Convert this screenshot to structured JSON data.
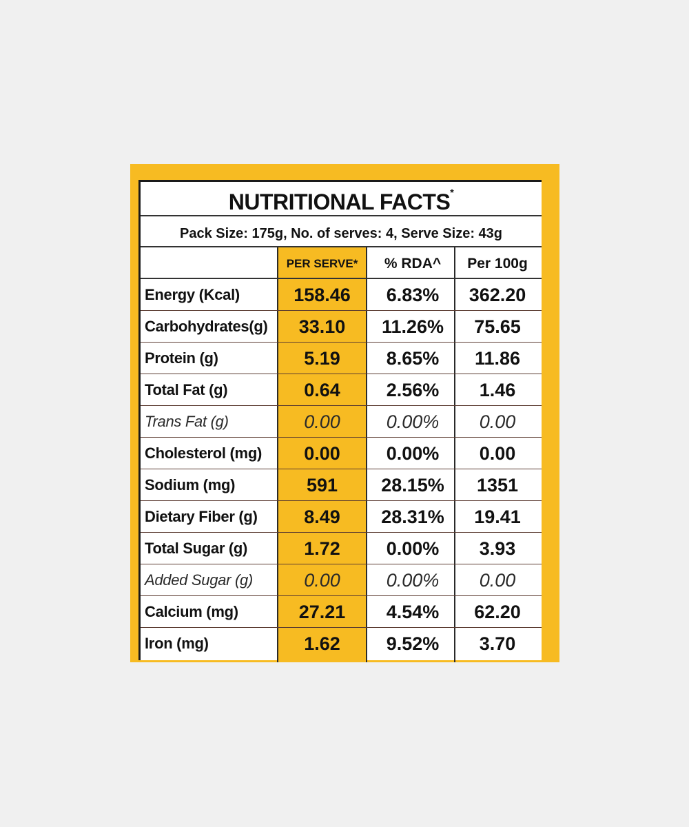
{
  "label": {
    "title": "NUTRITIONAL FACTS",
    "title_mark": "*",
    "pack_info": "Pack Size: 175g, No. of serves: 4, Serve Size: 43g",
    "columns": {
      "per_serve": "PER SERVE*",
      "rda": "% RDA^",
      "per_100g": "Per 100g"
    },
    "rows": [
      {
        "name": "Energy (Kcal)",
        "per_serve": "158.46",
        "rda": "6.83%",
        "per_100g": "362.20"
      },
      {
        "name": "Carbohydrates(g)",
        "per_serve": "33.10",
        "rda": "11.26%",
        "per_100g": "75.65"
      },
      {
        "name": "Protein (g)",
        "per_serve": "5.19",
        "rda": "8.65%",
        "per_100g": "11.86"
      },
      {
        "name": "Total Fat (g)",
        "per_serve": "0.64",
        "rda": "2.56%",
        "per_100g": "1.46"
      },
      {
        "name": "Trans Fat (g)",
        "per_serve": "0.00",
        "rda": "0.00%",
        "per_100g": "0.00"
      },
      {
        "name": "Cholesterol (mg)",
        "per_serve": "0.00",
        "rda": "0.00%",
        "per_100g": "0.00"
      },
      {
        "name": "Sodium (mg)",
        "per_serve": "591",
        "rda": "28.15%",
        "per_100g": "1351"
      },
      {
        "name": "Dietary Fiber (g)",
        "per_serve": "8.49",
        "rda": "28.31%",
        "per_100g": "19.41"
      },
      {
        "name": "Total Sugar (g)",
        "per_serve": "1.72",
        "rda": "0.00%",
        "per_100g": "3.93"
      },
      {
        "name": "Added Sugar (g)",
        "per_serve": "0.00",
        "rda": "0.00%",
        "per_100g": "0.00"
      },
      {
        "name": "Calcium (mg)",
        "per_serve": "27.21",
        "rda": "4.54%",
        "per_100g": "62.20"
      },
      {
        "name": "Iron (mg)",
        "per_serve": "1.62",
        "rda": "9.52%",
        "per_100g": "3.70"
      }
    ]
  },
  "colors": {
    "background": "#f0f0f0",
    "label_yellow": "#f7bb22",
    "card_white": "#ffffff",
    "text": "#111111"
  }
}
